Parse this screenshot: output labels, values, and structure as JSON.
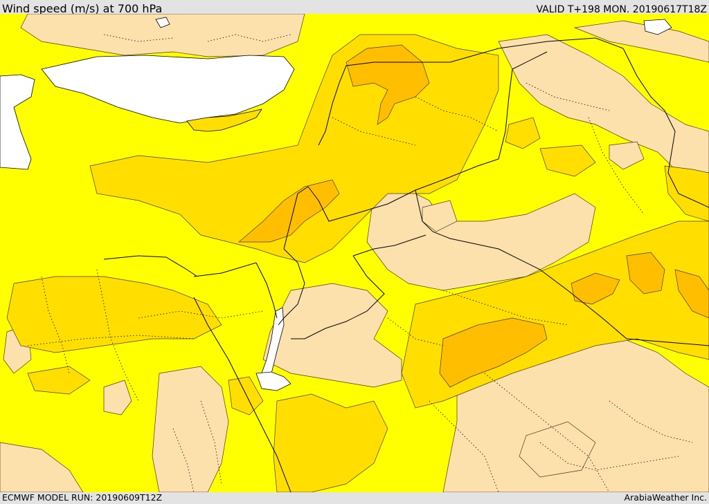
{
  "header": {
    "title": "Wind speed (m/s) at 700 hPa",
    "valid": "VALID T+198 MON. 20190617T18Z"
  },
  "footer": {
    "model_run": "ECMWF MODEL RUN: 20190609T12Z",
    "credit": "ArabiaWeather Inc."
  },
  "colors": {
    "sea": "#ffffff",
    "wind_0_5": "#fde1ac",
    "wind_5_10": "#ffff00",
    "wind_10_15": "#ffde00",
    "wind_15_20": "#ffbe00",
    "border": "#000000",
    "frame_bg": "#e3e3e3"
  }
}
